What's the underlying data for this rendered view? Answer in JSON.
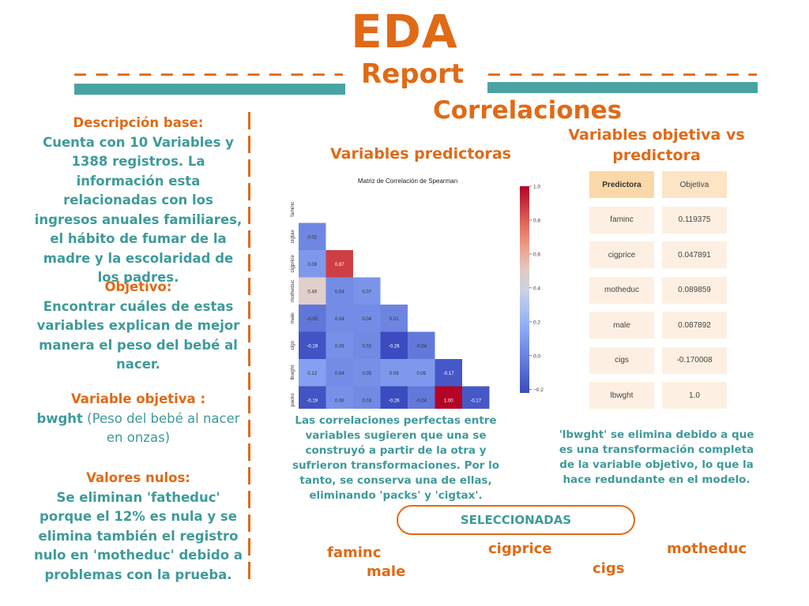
{
  "header": {
    "title": "EDA",
    "subtitle": "Report",
    "dashes": "_ _ _ _ _ _ _ _ _ _ _ _ _ _ _ _ _"
  },
  "section_title": "Correlaciones",
  "left": {
    "desc_head": "Descripción base:",
    "desc_body": "Cuenta con 10 Variables y 1388 registros. La información esta relacionadas con los ingresos anuales familiares, el hábito de fumar de la madre y la escolaridad de los padres.",
    "obj_head": "Objetivo:",
    "obj_body": "Encontrar cuáles de estas variables explican de mejor manera el peso del bebé al nacer.",
    "target_head": "Variable objetiva :",
    "target_name": "bwght",
    "target_desc": " (Peso del bebé al nacer en onzas)",
    "nulls_head": "Valores nulos:",
    "nulls_body": "Se eliminan 'fatheduc' porque el 12% es nula y se elimina también el registro nulo en 'motheduc' debido a problemas con la prueba."
  },
  "heatmap_section": {
    "title": "Variables predictoras",
    "chart_data": {
      "type": "heatmap",
      "title": "Matriz de Correlación de Spearman",
      "row_labels": [
        "faminc",
        "cigtax",
        "cigprice",
        "motheduc",
        "male",
        "cigs",
        "lbwght",
        "packs"
      ],
      "col_labels": [
        "faminc",
        "cigtax",
        "cigprice",
        "motheduc",
        "male",
        "cigs",
        "lbwght",
        "packs"
      ],
      "values": [
        [],
        [
          0.02
        ],
        [
          0.09,
          0.87
        ],
        [
          0.49,
          0.04,
          0.07
        ],
        [
          -0.05,
          0.04,
          0.04,
          0.01
        ],
        [
          -0.19,
          0.06,
          0.03,
          -0.26,
          -0.04
        ],
        [
          0.12,
          0.04,
          0.05,
          0.09,
          0.09,
          -0.17
        ],
        [
          -0.19,
          0.06,
          0.03,
          -0.26,
          -0.04,
          1.0,
          -0.17
        ]
      ],
      "colorbar_ticks": [
        "1.0",
        "0.8",
        "0.6",
        "0.4",
        "0.2",
        "0.0",
        "−0.2"
      ],
      "vmin": -0.22,
      "vmax": 1.0
    },
    "note": "Las correlaciones perfectas entre variables sugieren que una se construyó a partir de la otra y sufrieron transformaciones. Por lo tanto, se conserva una de ellas, eliminando 'packs' y 'cigtax'."
  },
  "table_section": {
    "title": "Variables objetiva vs predictora",
    "headers": [
      "Predictora",
      "Objetiva"
    ],
    "rows": [
      [
        "faminc",
        "0.119375"
      ],
      [
        "cigprice",
        "0.047891"
      ],
      [
        "motheduc",
        "0.089859"
      ],
      [
        "male",
        "0.087892"
      ],
      [
        "cigs",
        "-0.170008"
      ],
      [
        "lbwght",
        "1.0"
      ]
    ],
    "note": "'lbwght' se elimina debido a que es una transformación completa de la variable objetivo, lo que la hace redundante en el modelo."
  },
  "selected": {
    "label": "SELECCIONADAS",
    "items": [
      "faminc",
      "male",
      "cigprice",
      "cigs",
      "motheduc"
    ]
  }
}
